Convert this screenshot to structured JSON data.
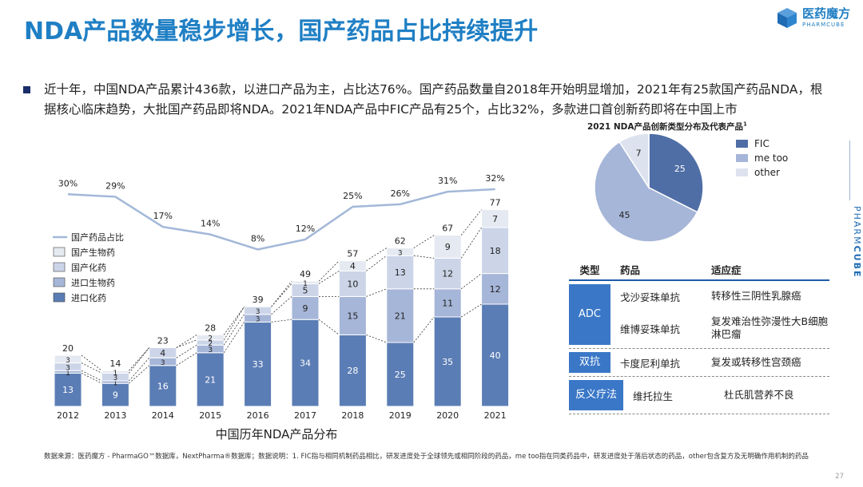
{
  "title": "NDA产品数量稳步增长，国产药品占比持续提升",
  "logo": {
    "cn": "医药魔方",
    "en": "PHARMCUBE"
  },
  "bullet_text": "近十年，中国NDA产品累计436款，以进口产品为主，占比达76%。国产药品数量自2018年开始明显增加，2021年有25款国产药品NDA，根据核心临床趋势，大批国产药品即将NDA。2021年NDA产品中FIC产品有25个，占比32%，多款进口首创新药即将在中国上市",
  "side_brand": {
    "light": "PHARM",
    "bold": "CUBE"
  },
  "colors": {
    "title": "#1f7fc4",
    "import_chem": "#5b7db5",
    "import_bio": "#a6b6d8",
    "dom_chem": "#ccd5e8",
    "dom_bio": "#e5e9f1",
    "line": "#a3b8d8",
    "pie_fic": "#4f6ea6",
    "pie_metoo": "#a6b6d8",
    "pie_other": "#dde3ee",
    "table_accent": "#3a77c7"
  },
  "chart_data": [
    {
      "type": "bar",
      "subtype": "stacked-bar-with-line",
      "title": "中国历年NDA产品分布",
      "categories": [
        "2012",
        "2013",
        "2014",
        "2015",
        "2016",
        "2017",
        "2018",
        "2019",
        "2020",
        "2021"
      ],
      "series": [
        {
          "name": "进口化药",
          "values": [
            13,
            9,
            16,
            21,
            33,
            34,
            28,
            25,
            35,
            40
          ]
        },
        {
          "name": "进口生物药",
          "values": [
            1,
            1,
            3,
            3,
            3,
            9,
            15,
            21,
            11,
            12
          ]
        },
        {
          "name": "国产化药",
          "values": [
            3,
            3,
            4,
            2,
            3,
            5,
            10,
            13,
            12,
            18
          ]
        },
        {
          "name": "国产生物药",
          "values": [
            3,
            1,
            0,
            2,
            0,
            1,
            4,
            3,
            9,
            7
          ]
        }
      ],
      "totals": [
        20,
        14,
        23,
        28,
        39,
        49,
        57,
        62,
        67,
        77
      ],
      "line": {
        "name": "国产药品占比",
        "values": [
          30,
          29,
          17,
          14,
          8,
          12,
          25,
          26,
          31,
          32
        ],
        "labels": [
          "30%",
          "29%",
          "17%",
          "14%",
          "8%",
          "12%",
          "25%",
          "26%",
          "31%",
          "32%"
        ]
      },
      "legend_placement": "left",
      "grid": false
    },
    {
      "type": "pie",
      "title": "2021 NDA产品创新类型分布及代表产品",
      "title_sup": "1",
      "slices": [
        {
          "name": "FIC",
          "value": 25
        },
        {
          "name": "me too",
          "value": 45
        },
        {
          "name": "other",
          "value": 7
        }
      ],
      "legend_placement": "right"
    }
  ],
  "table": {
    "headers": [
      "类型",
      "药品",
      "适应症"
    ],
    "groups": [
      {
        "type": "ADC",
        "rows": [
          {
            "drug": "戈沙妥珠单抗",
            "indication": "转移性三阴性乳腺癌"
          },
          {
            "drug": "维博妥珠单抗",
            "indication": "复发难治性弥漫性大B细胞淋巴瘤"
          }
        ]
      },
      {
        "type": "双抗",
        "rows": [
          {
            "drug": "卡度尼利单抗",
            "indication": "复发或转移性宫颈癌"
          }
        ]
      },
      {
        "type": "反义疗法",
        "rows": [
          {
            "drug": "维托拉生",
            "indication": "杜氏肌营养不良"
          }
        ]
      }
    ]
  },
  "source": "数据来源：医药魔方 - PharmaGO™数据库，NextPharma®数据库；数据说明：1. FIC指与相同机制药品相比，研发进度处于全球领先或相同阶段的药品，me too指在同类药品中，研发进度处于落后状态的药品，other包含复方及无明确作用机制的药品",
  "page_number": "27"
}
